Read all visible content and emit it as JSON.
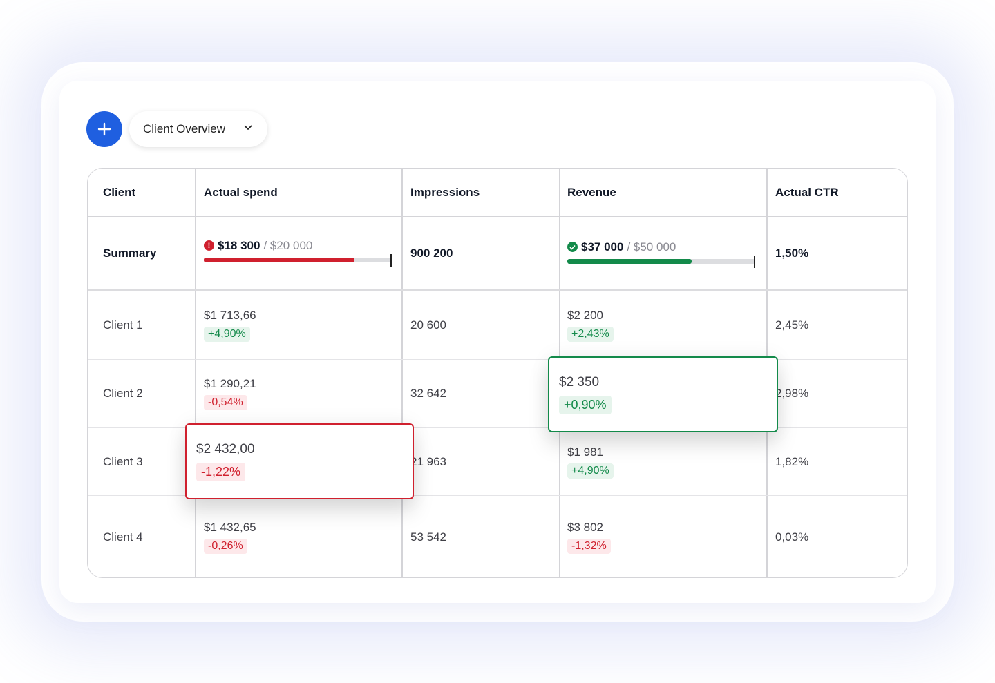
{
  "toolbar": {
    "view_label": "Client Overview"
  },
  "table": {
    "columns": [
      "Client",
      "Actual spend",
      "Impressions",
      "Revenue",
      "Actual CTR"
    ],
    "summary": {
      "label": "Summary",
      "spend_amount": "$18 300",
      "spend_target": "/ $20 000",
      "spend_progress": 0.8,
      "impressions": "900 200",
      "revenue_amount": "$37 000",
      "revenue_target": "/ $50 000",
      "revenue_progress": 0.66,
      "ctr": "1,50%"
    },
    "rows": [
      {
        "client": "Client 1",
        "spend": "$1 713,66",
        "spend_change": "+4,90%",
        "impressions": "20 600",
        "revenue": "$2 200",
        "revenue_change": "+2,43%",
        "ctr": "2,45%"
      },
      {
        "client": "Client 2",
        "spend": "$1 290,21",
        "spend_change": "-0,54%",
        "impressions": "32 642",
        "revenue": "",
        "revenue_change": "",
        "ctr": "2,98%"
      },
      {
        "client": "Client 3",
        "spend": "",
        "spend_change": "",
        "impressions": "21 963",
        "revenue": "$1 981",
        "revenue_change": "+4,90%",
        "ctr": "1,82%"
      },
      {
        "client": "Client 4",
        "spend": "$1 432,65",
        "spend_change": "-0,26%",
        "impressions": "53 542",
        "revenue": "$3 802",
        "revenue_change": "-1,32%",
        "ctr": "0,03%"
      }
    ]
  },
  "popups": {
    "revenue_popup": {
      "value": "$2 350",
      "change": "+0,90%"
    },
    "spend_popup": {
      "value": "$2 432,00",
      "change": "-1,22%"
    }
  },
  "colors": {
    "accent": "#1f5fe0",
    "positive": "#138a4a",
    "negative": "#d0202e"
  }
}
